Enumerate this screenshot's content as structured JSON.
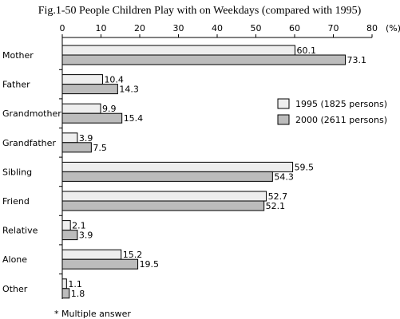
{
  "chart_data": {
    "type": "bar",
    "orientation": "horizontal",
    "title": "Fig.1-50 People Children Play with on Weekdays (compared with 1995)",
    "unit_label": "(%)",
    "xlim": [
      0,
      80
    ],
    "ticks": [
      0,
      10,
      20,
      30,
      40,
      50,
      60,
      70,
      80
    ],
    "categories": [
      "Mother",
      "Father",
      "Grandmother",
      "Grandfather",
      "Sibling",
      "Friend",
      "Relative",
      "Alone",
      "Other"
    ],
    "series": [
      {
        "name": "1995 (1825 persons)",
        "color": "#eeeeee",
        "values": [
          60.1,
          10.4,
          9.9,
          3.9,
          59.5,
          52.7,
          2.1,
          15.2,
          1.1
        ]
      },
      {
        "name": "2000 (2611 persons)",
        "color": "#bcbcbc",
        "values": [
          73.1,
          14.3,
          15.4,
          7.5,
          54.3,
          52.1,
          3.9,
          19.5,
          1.8
        ]
      }
    ],
    "value_labels": [
      [
        "60.1",
        "10.4",
        "9.9",
        "3.9",
        "59.5",
        "52.7",
        "2.1",
        "15.2",
        "1.1"
      ],
      [
        "73.1",
        "14.3",
        "15.4",
        "7.5",
        "54.3",
        "52.1",
        "3.9",
        "19.5",
        "1.8"
      ]
    ],
    "legend_position": "right",
    "grid": false,
    "note": "* Multiple answer"
  }
}
